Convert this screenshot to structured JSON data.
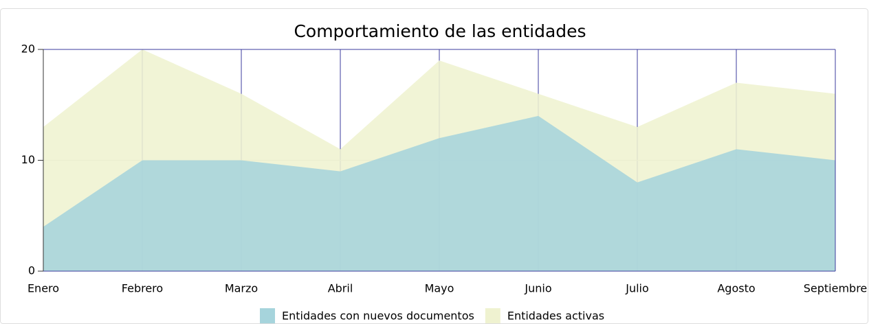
{
  "chart_data": {
    "type": "area",
    "title": "Comportamiento de las entidades",
    "categories": [
      "Enero",
      "Febrero",
      "Marzo",
      "Abril",
      "Mayo",
      "Junio",
      "Julio",
      "Agosto",
      "Septiembre"
    ],
    "series": [
      {
        "name": "Entidades con nuevos documentos",
        "color": "#a6d4dc",
        "values": [
          4,
          10,
          10,
          9,
          12,
          14,
          8,
          11,
          10
        ]
      },
      {
        "name": "Entidades activas",
        "color": "#eff2d0",
        "values": [
          13,
          20,
          16,
          11,
          19,
          16,
          13,
          17,
          16
        ]
      }
    ],
    "ylim": [
      0,
      20
    ],
    "yticks": [
      0,
      10,
      20
    ],
    "grid": true
  }
}
